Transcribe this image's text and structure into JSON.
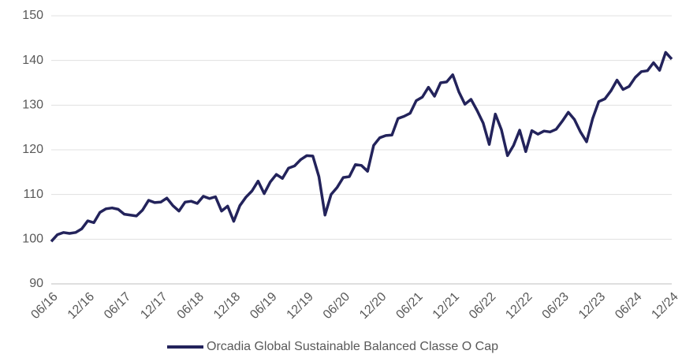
{
  "chart_data": {
    "type": "line",
    "categories": [
      "06/16",
      null,
      null,
      null,
      null,
      null,
      "12/16",
      null,
      null,
      null,
      null,
      null,
      "06/17",
      null,
      null,
      null,
      null,
      null,
      "12/17",
      null,
      null,
      null,
      null,
      null,
      "06/18",
      null,
      null,
      null,
      null,
      null,
      "12/18",
      null,
      null,
      null,
      null,
      null,
      "06/19",
      null,
      null,
      null,
      null,
      null,
      "12/19",
      null,
      null,
      null,
      null,
      null,
      "06/20",
      null,
      null,
      null,
      null,
      null,
      "12/20",
      null,
      null,
      null,
      null,
      null,
      "06/21",
      null,
      null,
      null,
      null,
      null,
      "12/21",
      null,
      null,
      null,
      null,
      null,
      "06/22",
      null,
      null,
      null,
      null,
      null,
      "12/22",
      null,
      null,
      null,
      null,
      null,
      "06/23",
      null,
      null,
      null,
      null,
      null,
      "12/23",
      null,
      null,
      null,
      null,
      null,
      "06/24",
      null,
      null,
      null,
      null,
      null,
      "12/24"
    ],
    "series": [
      {
        "name": "Orcadia Global Sustainable Balanced Classe O Cap",
        "color": "#23235b",
        "values": [
          99.5,
          101,
          101.5,
          101.3,
          101.5,
          102.3,
          104.1,
          103.7,
          106,
          106.8,
          107,
          106.7,
          105.6,
          105.4,
          105.2,
          106.5,
          108.7,
          108.2,
          108.3,
          109.2,
          107.5,
          106.3,
          108.3,
          108.5,
          108,
          109.6,
          109.1,
          109.5,
          106.3,
          107.4,
          104,
          107.5,
          109.4,
          110.8,
          113,
          110.2,
          112.8,
          114.5,
          113.6,
          115.9,
          116.4,
          117.8,
          118.7,
          118.6,
          114,
          105.4,
          110,
          111.6,
          113.8,
          114,
          116.7,
          116.5,
          115.2,
          121,
          122.7,
          123.2,
          123.3,
          127,
          127.5,
          128.2,
          131,
          131.8,
          134,
          132,
          135,
          135.2,
          136.8,
          133,
          130.2,
          131.3,
          128.8,
          126,
          121.2,
          128,
          124.5,
          118.7,
          121,
          124.4,
          119.6,
          124.3,
          123.5,
          124.2,
          124,
          124.6,
          126.4,
          128.4,
          126.8,
          124,
          121.8,
          127,
          130.8,
          131.4,
          133.2,
          135.6,
          133.5,
          134.2,
          136.2,
          137.5,
          137.7,
          139.5,
          137.8,
          141.8,
          140.3
        ]
      }
    ],
    "ylim": [
      90,
      150
    ],
    "yticks": [
      90,
      100,
      110,
      120,
      130,
      140,
      150
    ],
    "grid": true,
    "legend": "bottom"
  }
}
